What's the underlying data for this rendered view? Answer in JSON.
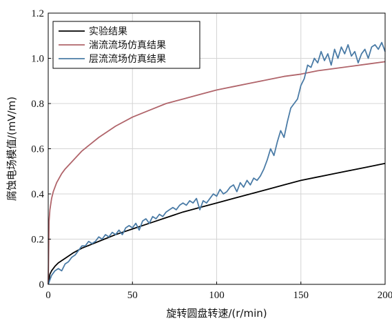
{
  "chart_data": {
    "type": "line",
    "title": "",
    "xlabel": "旋转圆盘转速/(r/min)",
    "ylabel": "腐蚀电场模值/(mV/m)",
    "xlim": [
      0,
      200
    ],
    "ylim": [
      0,
      1.2
    ],
    "xticks": [
      "0",
      "50",
      "100",
      "150",
      "200"
    ],
    "yticks": [
      "0",
      "0.2",
      "0.4",
      "0.6",
      "0.8",
      "1.0",
      "1.2"
    ],
    "grid": true,
    "legend_position": "top-left",
    "series": [
      {
        "name": "实验结果",
        "color": "#000000",
        "x": [
          0,
          1,
          2,
          4,
          6,
          8,
          10,
          15,
          20,
          25,
          30,
          40,
          50,
          60,
          70,
          80,
          90,
          100,
          110,
          120,
          130,
          140,
          150,
          160,
          170,
          180,
          190,
          200
        ],
        "y": [
          0,
          0.045,
          0.06,
          0.08,
          0.095,
          0.105,
          0.115,
          0.14,
          0.16,
          0.175,
          0.19,
          0.22,
          0.245,
          0.27,
          0.295,
          0.32,
          0.34,
          0.36,
          0.38,
          0.4,
          0.42,
          0.44,
          0.46,
          0.475,
          0.49,
          0.505,
          0.52,
          0.535
        ]
      },
      {
        "name": "湍流流场仿真结果",
        "color": "#b0646a",
        "x": [
          0,
          0.5,
          1,
          2,
          3,
          5,
          8,
          10,
          15,
          20,
          25,
          30,
          40,
          50,
          60,
          70,
          80,
          90,
          100,
          110,
          120,
          130,
          140,
          150,
          160,
          170,
          180,
          190,
          200
        ],
        "y": [
          0,
          0.28,
          0.33,
          0.38,
          0.41,
          0.45,
          0.49,
          0.51,
          0.55,
          0.59,
          0.62,
          0.65,
          0.7,
          0.74,
          0.77,
          0.8,
          0.82,
          0.84,
          0.86,
          0.875,
          0.89,
          0.905,
          0.92,
          0.93,
          0.945,
          0.955,
          0.965,
          0.975,
          0.985
        ]
      },
      {
        "name": "层流流场仿真结果",
        "color": "#4a7ba6",
        "x": [
          0,
          2,
          4,
          6,
          8,
          10,
          12,
          14,
          16,
          18,
          20,
          22,
          24,
          26,
          28,
          30,
          32,
          34,
          36,
          38,
          40,
          42,
          44,
          46,
          48,
          50,
          52,
          54,
          56,
          58,
          60,
          62,
          64,
          66,
          68,
          70,
          72,
          74,
          76,
          78,
          80,
          82,
          84,
          86,
          88,
          90,
          92,
          94,
          96,
          98,
          100,
          102,
          104,
          106,
          108,
          110,
          112,
          114,
          116,
          118,
          120,
          122,
          124,
          126,
          128,
          130,
          132,
          134,
          136,
          138,
          140,
          142,
          144,
          146,
          148,
          150,
          152,
          154,
          156,
          158,
          160,
          162,
          164,
          166,
          168,
          170,
          172,
          174,
          176,
          178,
          180,
          182,
          184,
          186,
          188,
          190,
          192,
          194,
          196,
          198,
          200
        ],
        "y": [
          0,
          0.04,
          0.06,
          0.07,
          0.06,
          0.09,
          0.1,
          0.12,
          0.13,
          0.15,
          0.17,
          0.17,
          0.19,
          0.18,
          0.19,
          0.21,
          0.2,
          0.22,
          0.21,
          0.23,
          0.22,
          0.24,
          0.22,
          0.25,
          0.26,
          0.25,
          0.27,
          0.24,
          0.28,
          0.29,
          0.27,
          0.3,
          0.29,
          0.31,
          0.3,
          0.32,
          0.33,
          0.34,
          0.33,
          0.35,
          0.36,
          0.35,
          0.37,
          0.36,
          0.38,
          0.33,
          0.37,
          0.36,
          0.38,
          0.4,
          0.39,
          0.42,
          0.4,
          0.41,
          0.43,
          0.44,
          0.41,
          0.45,
          0.43,
          0.46,
          0.44,
          0.47,
          0.46,
          0.48,
          0.51,
          0.55,
          0.6,
          0.57,
          0.63,
          0.68,
          0.65,
          0.72,
          0.78,
          0.8,
          0.82,
          0.88,
          0.91,
          0.97,
          0.96,
          1.0,
          0.98,
          1.03,
          0.99,
          1.02,
          0.97,
          1.04,
          1.0,
          1.05,
          1.02,
          1.06,
          1.01,
          1.03,
          0.98,
          1.02,
          1.04,
          1.0,
          1.05,
          1.06,
          1.04,
          1.07,
          1.03
        ]
      }
    ]
  }
}
